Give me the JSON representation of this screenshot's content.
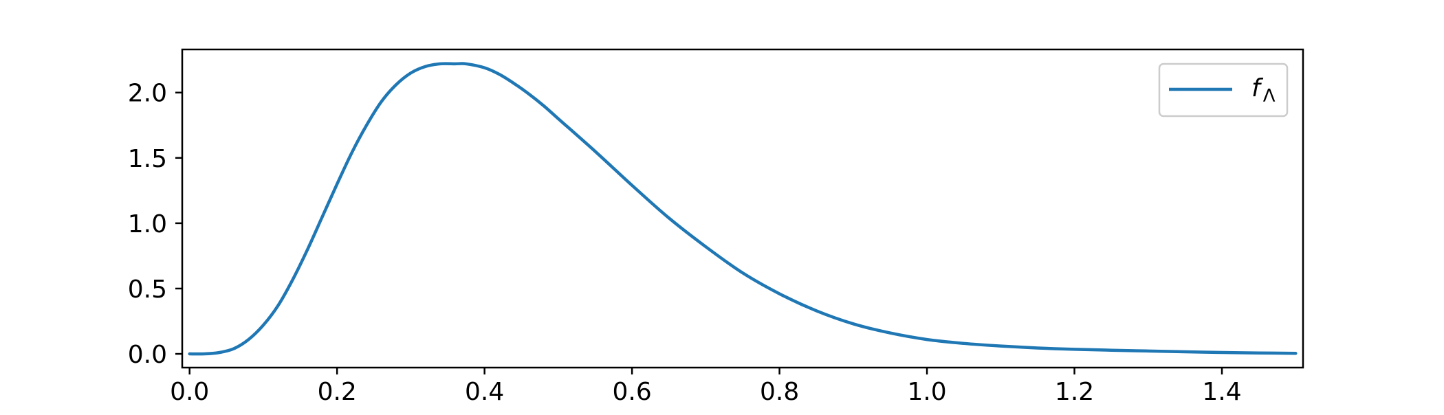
{
  "chart_data": {
    "type": "line",
    "title": "",
    "xlabel": "",
    "ylabel": "",
    "xlim": [
      -0.01,
      1.51
    ],
    "ylim": [
      -0.105,
      2.33
    ],
    "grid": false,
    "legend_position": "top-right",
    "x_ticks": [
      0.0,
      0.2,
      0.4,
      0.6,
      0.8,
      1.0,
      1.2,
      1.4
    ],
    "x_tick_labels": [
      "0.0",
      "0.2",
      "0.4",
      "0.6",
      "0.8",
      "1.0",
      "1.2",
      "1.4"
    ],
    "y_ticks": [
      0.0,
      0.5,
      1.0,
      1.5,
      2.0
    ],
    "y_tick_labels": [
      "0.0",
      "0.5",
      "1.0",
      "1.5",
      "2.0"
    ],
    "series": [
      {
        "name": "f",
        "name_subscript": "Λ",
        "color": "#1f77b4",
        "x": [
          0.0,
          0.02,
          0.04,
          0.06,
          0.08,
          0.1,
          0.12,
          0.14,
          0.16,
          0.18,
          0.2,
          0.22,
          0.24,
          0.26,
          0.28,
          0.3,
          0.32,
          0.34,
          0.36,
          0.375,
          0.4,
          0.42,
          0.44,
          0.46,
          0.48,
          0.5,
          0.55,
          0.6,
          0.65,
          0.7,
          0.75,
          0.8,
          0.85,
          0.9,
          0.95,
          1.0,
          1.05,
          1.1,
          1.15,
          1.2,
          1.25,
          1.3,
          1.35,
          1.4,
          1.45,
          1.5
        ],
        "y": [
          0.0,
          0.0,
          0.01,
          0.04,
          0.11,
          0.22,
          0.37,
          0.57,
          0.8,
          1.05,
          1.3,
          1.54,
          1.75,
          1.93,
          2.06,
          2.15,
          2.2,
          2.22,
          2.22,
          2.22,
          2.19,
          2.14,
          2.07,
          1.99,
          1.9,
          1.8,
          1.55,
          1.29,
          1.04,
          0.82,
          0.62,
          0.46,
          0.33,
          0.23,
          0.16,
          0.11,
          0.08,
          0.06,
          0.045,
          0.035,
          0.028,
          0.022,
          0.016,
          0.011,
          0.007,
          0.004
        ]
      }
    ]
  }
}
